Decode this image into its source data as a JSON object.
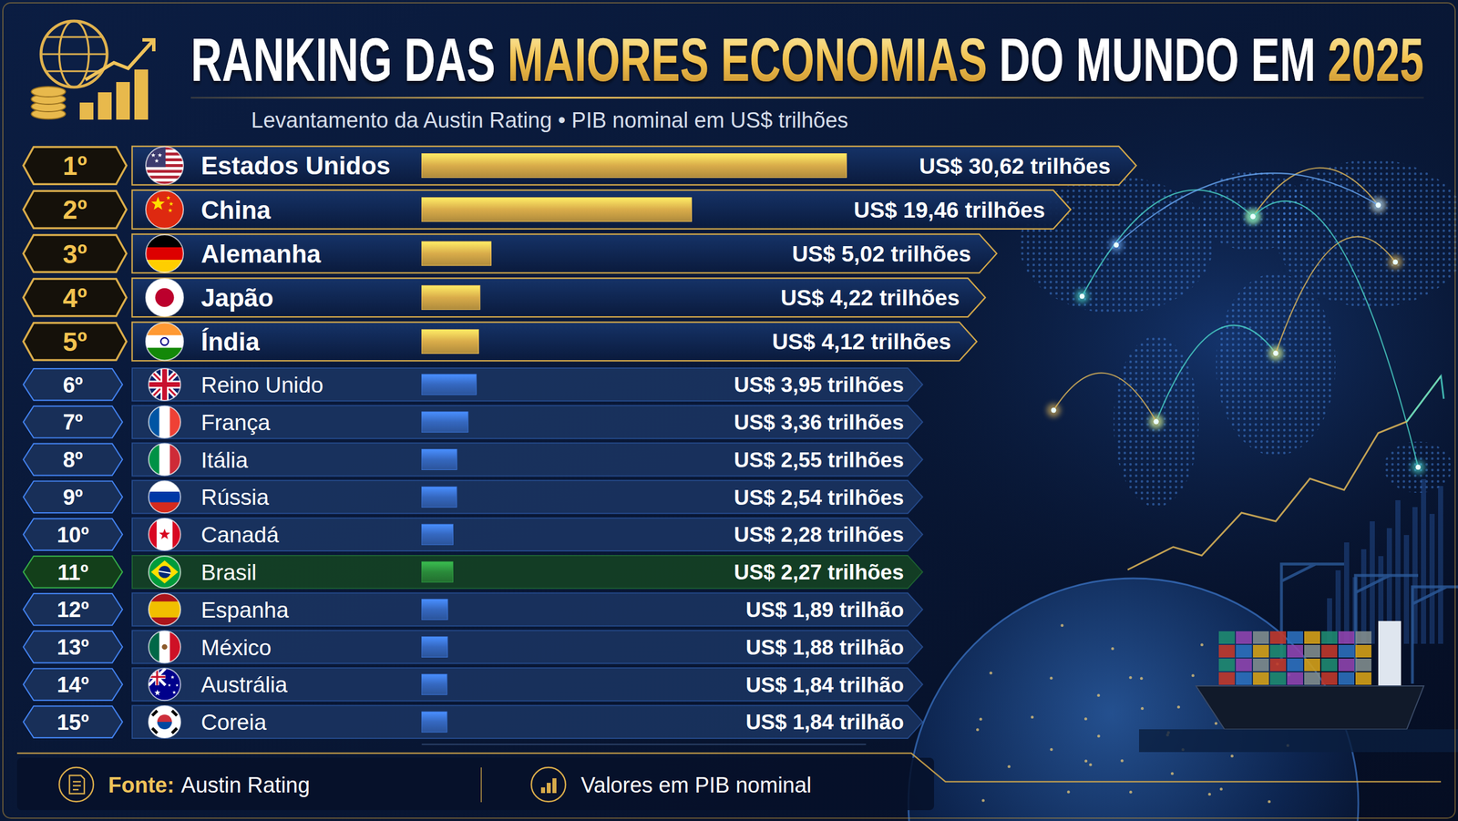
{
  "chart_data": {
    "type": "bar",
    "orientation": "horizontal",
    "title": "RANKING DAS MAIORES ECONOMIAS DO MUNDO EM 2025",
    "subtitle": "Levantamento da Austin Rating • PIB nominal em US$ trilhões",
    "ranks": [
      "1º",
      "2º",
      "3º",
      "4º",
      "5º",
      "6º",
      "7º",
      "8º",
      "9º",
      "10º",
      "11º",
      "12º",
      "13º",
      "14º",
      "15º"
    ],
    "categories": [
      "Estados Unidos",
      "China",
      "Alemanha",
      "Japão",
      "Índia",
      "Reino Unido",
      "França",
      "Itália",
      "Rússia",
      "Canadá",
      "Brasil",
      "Espanha",
      "México",
      "Austrália",
      "Coreia"
    ],
    "values": [
      30.62,
      19.46,
      5.02,
      4.22,
      4.12,
      3.95,
      3.36,
      2.55,
      2.54,
      2.28,
      2.27,
      1.89,
      1.88,
      1.84,
      1.84
    ],
    "value_labels": [
      "US$ 30,62 trilhões",
      "US$ 19,46 trilhões",
      "US$ 5,02 trilhões",
      "US$ 4,22 trilhões",
      "US$ 4,12 trilhões",
      "US$ 3,95 trilhões",
      "US$ 3,36 trilhões",
      "US$ 2,55 trilhões",
      "US$ 2,54 trilhões",
      "US$ 2,28 trilhões",
      "US$ 2,27 trilhões",
      "US$ 1,89 trilhão",
      "US$ 1,88 trilhão",
      "US$ 1,84 trilhão",
      "US$ 1,84 trilhão"
    ],
    "colors": [
      "#d9ac4a",
      "#d9ac4a",
      "#d9ac4a",
      "#d9ac4a",
      "#d9ac4a",
      "#3568c0",
      "#3568c0",
      "#3568c0",
      "#3568c0",
      "#3568c0",
      "#2a8a3a",
      "#3568c0",
      "#3568c0",
      "#3568c0",
      "#3568c0"
    ],
    "xlim": [
      0,
      32
    ],
    "data_labels": true,
    "tick_labels": false,
    "grid": false,
    "source": {
      "label": "Fonte:",
      "text": "Austin Rating"
    },
    "note": "Valores em PIB nominal"
  }
}
